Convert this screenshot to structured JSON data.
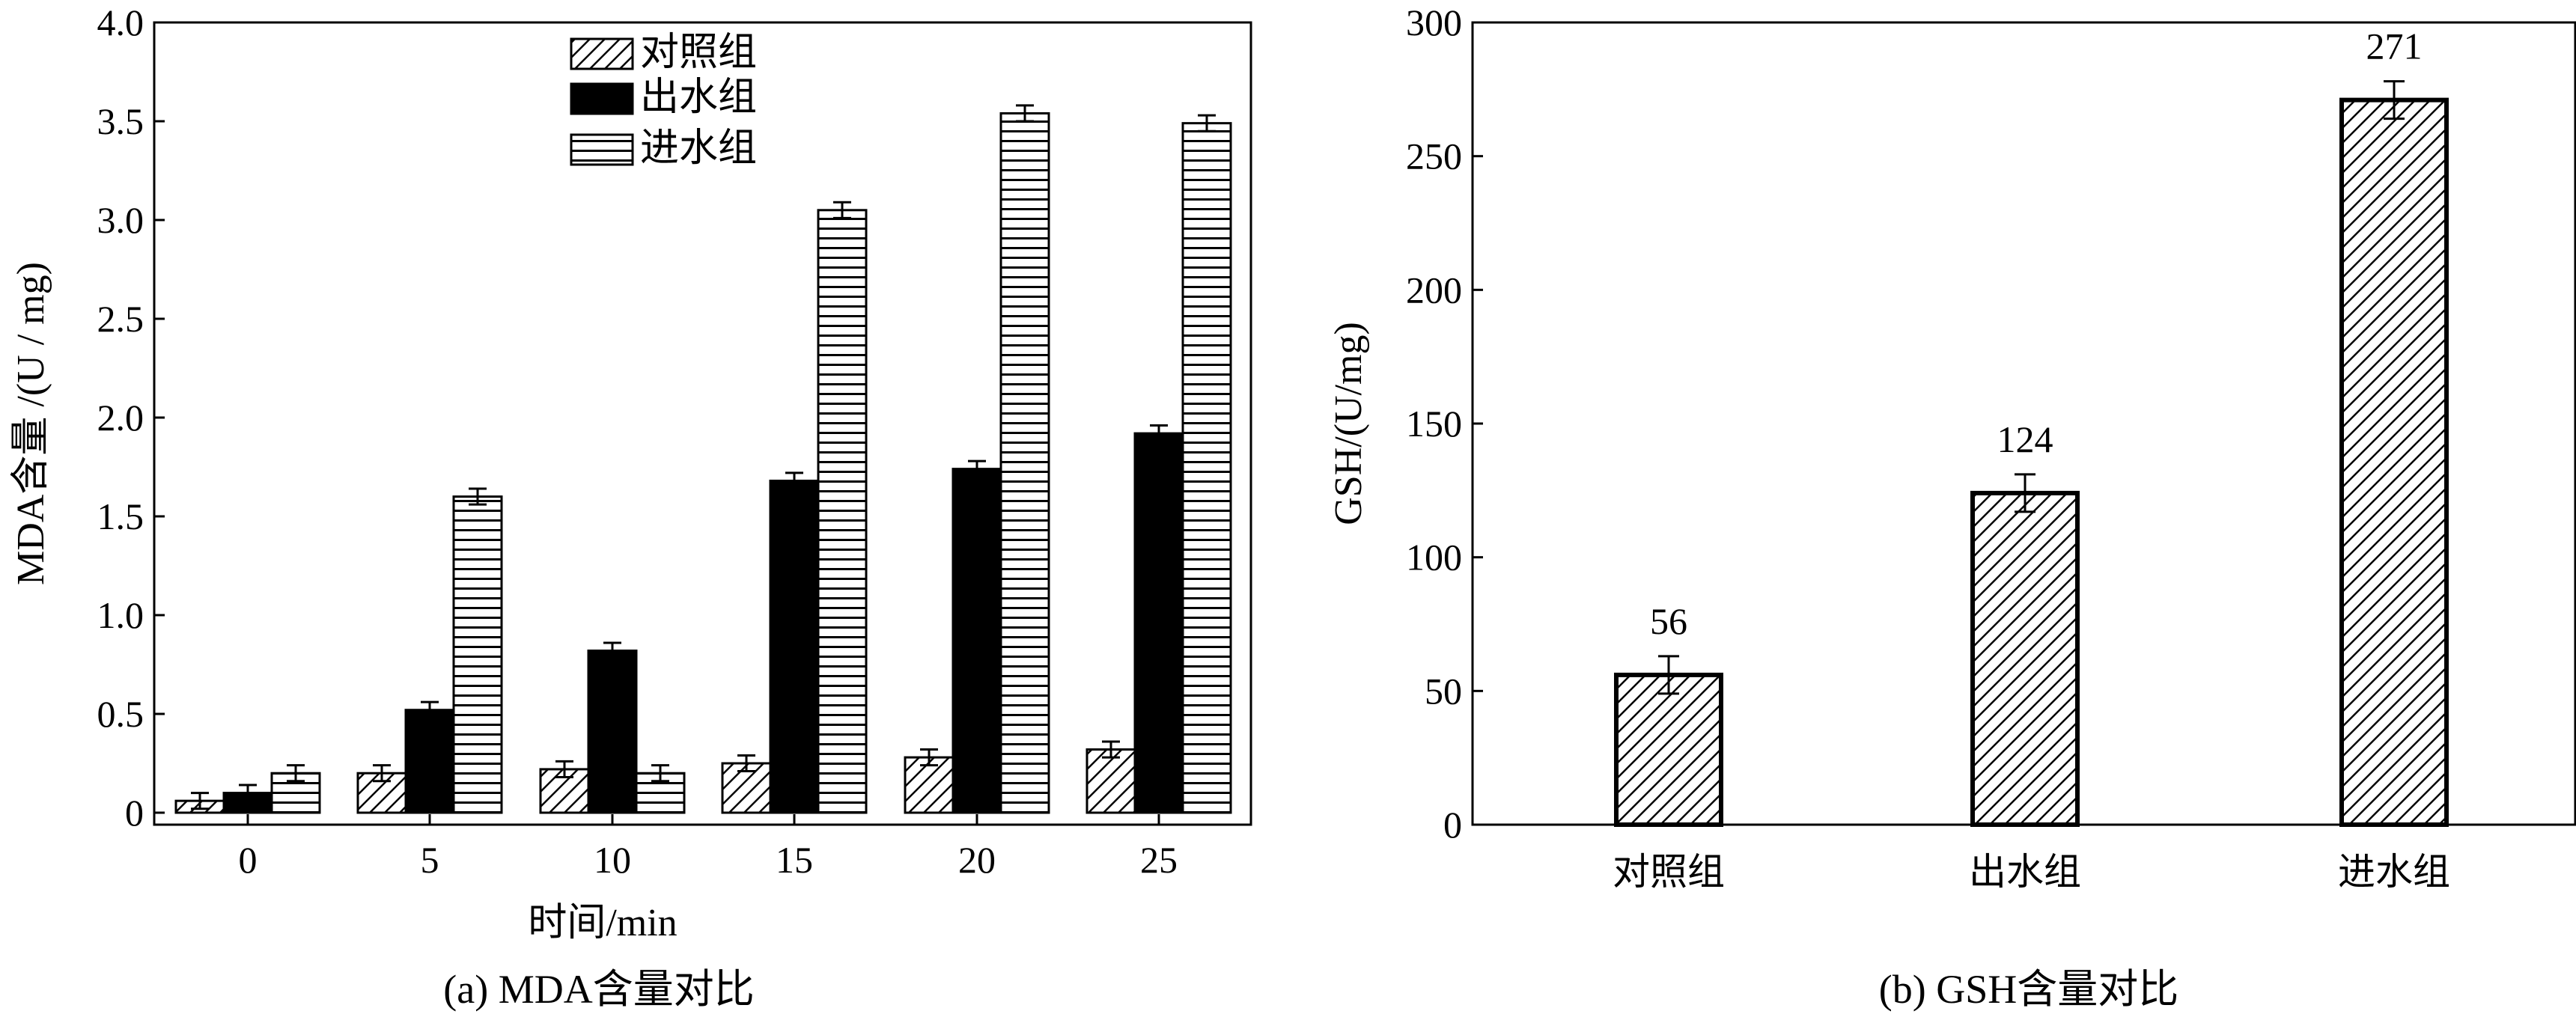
{
  "panel_a": {
    "caption": "(a) MDA含量对比",
    "xlabel": "时间/min",
    "ylabel": "MDA含量 /(U / mg)",
    "legend": [
      "对照组",
      "出水组",
      "进水组"
    ]
  },
  "panel_b": {
    "caption": "(b) GSH含量对比",
    "ylabel": "GSH/(U/mg)"
  },
  "colors": {
    "ink": "#000000",
    "background": "#ffffff"
  },
  "chart_data": [
    {
      "type": "bar",
      "title": "",
      "caption": "(a) MDA含量对比",
      "xlabel": "时间/min",
      "ylabel": "MDA含量 /(U / mg)",
      "categories": [
        "0",
        "5",
        "10",
        "15",
        "20",
        "25"
      ],
      "ylim": [
        0,
        4.0
      ],
      "yticks": [
        "0",
        "0.5",
        "1.0",
        "1.5",
        "2.0",
        "2.5",
        "3.0",
        "3.5",
        "4.0"
      ],
      "legend_position": "top-center",
      "grid": false,
      "series": [
        {
          "name": "对照组",
          "pattern": "diagonal-hatch",
          "values": [
            0.06,
            0.2,
            0.22,
            0.25,
            0.28,
            0.32
          ],
          "errors": [
            0.04,
            0.04,
            0.04,
            0.04,
            0.04,
            0.04
          ]
        },
        {
          "name": "出水组",
          "pattern": "solid-black",
          "values": [
            0.1,
            0.52,
            0.82,
            1.68,
            1.74,
            1.92
          ],
          "errors": [
            0.04,
            0.04,
            0.04,
            0.04,
            0.04,
            0.04
          ]
        },
        {
          "name": "进水组",
          "pattern": "horizontal-lines",
          "values": [
            0.2,
            1.6,
            0.2,
            3.05,
            3.54,
            3.49
          ],
          "errors": [
            0.04,
            0.04,
            0.04,
            0.04,
            0.04,
            0.04
          ]
        }
      ]
    },
    {
      "type": "bar",
      "title": "",
      "caption": "(b) GSH含量对比",
      "xlabel": "",
      "ylabel": "GSH/(U/mg)",
      "categories": [
        "对照组",
        "出水组",
        "进水组"
      ],
      "ylim": [
        0,
        300
      ],
      "yticks": [
        "0",
        "50",
        "100",
        "150",
        "200",
        "250",
        "300"
      ],
      "grid": false,
      "series": [
        {
          "pattern": "diagonal-hatch",
          "values": [
            56,
            124,
            271
          ],
          "errors": [
            7,
            7,
            7
          ],
          "labels": [
            "56",
            "124",
            "271"
          ]
        }
      ]
    }
  ]
}
